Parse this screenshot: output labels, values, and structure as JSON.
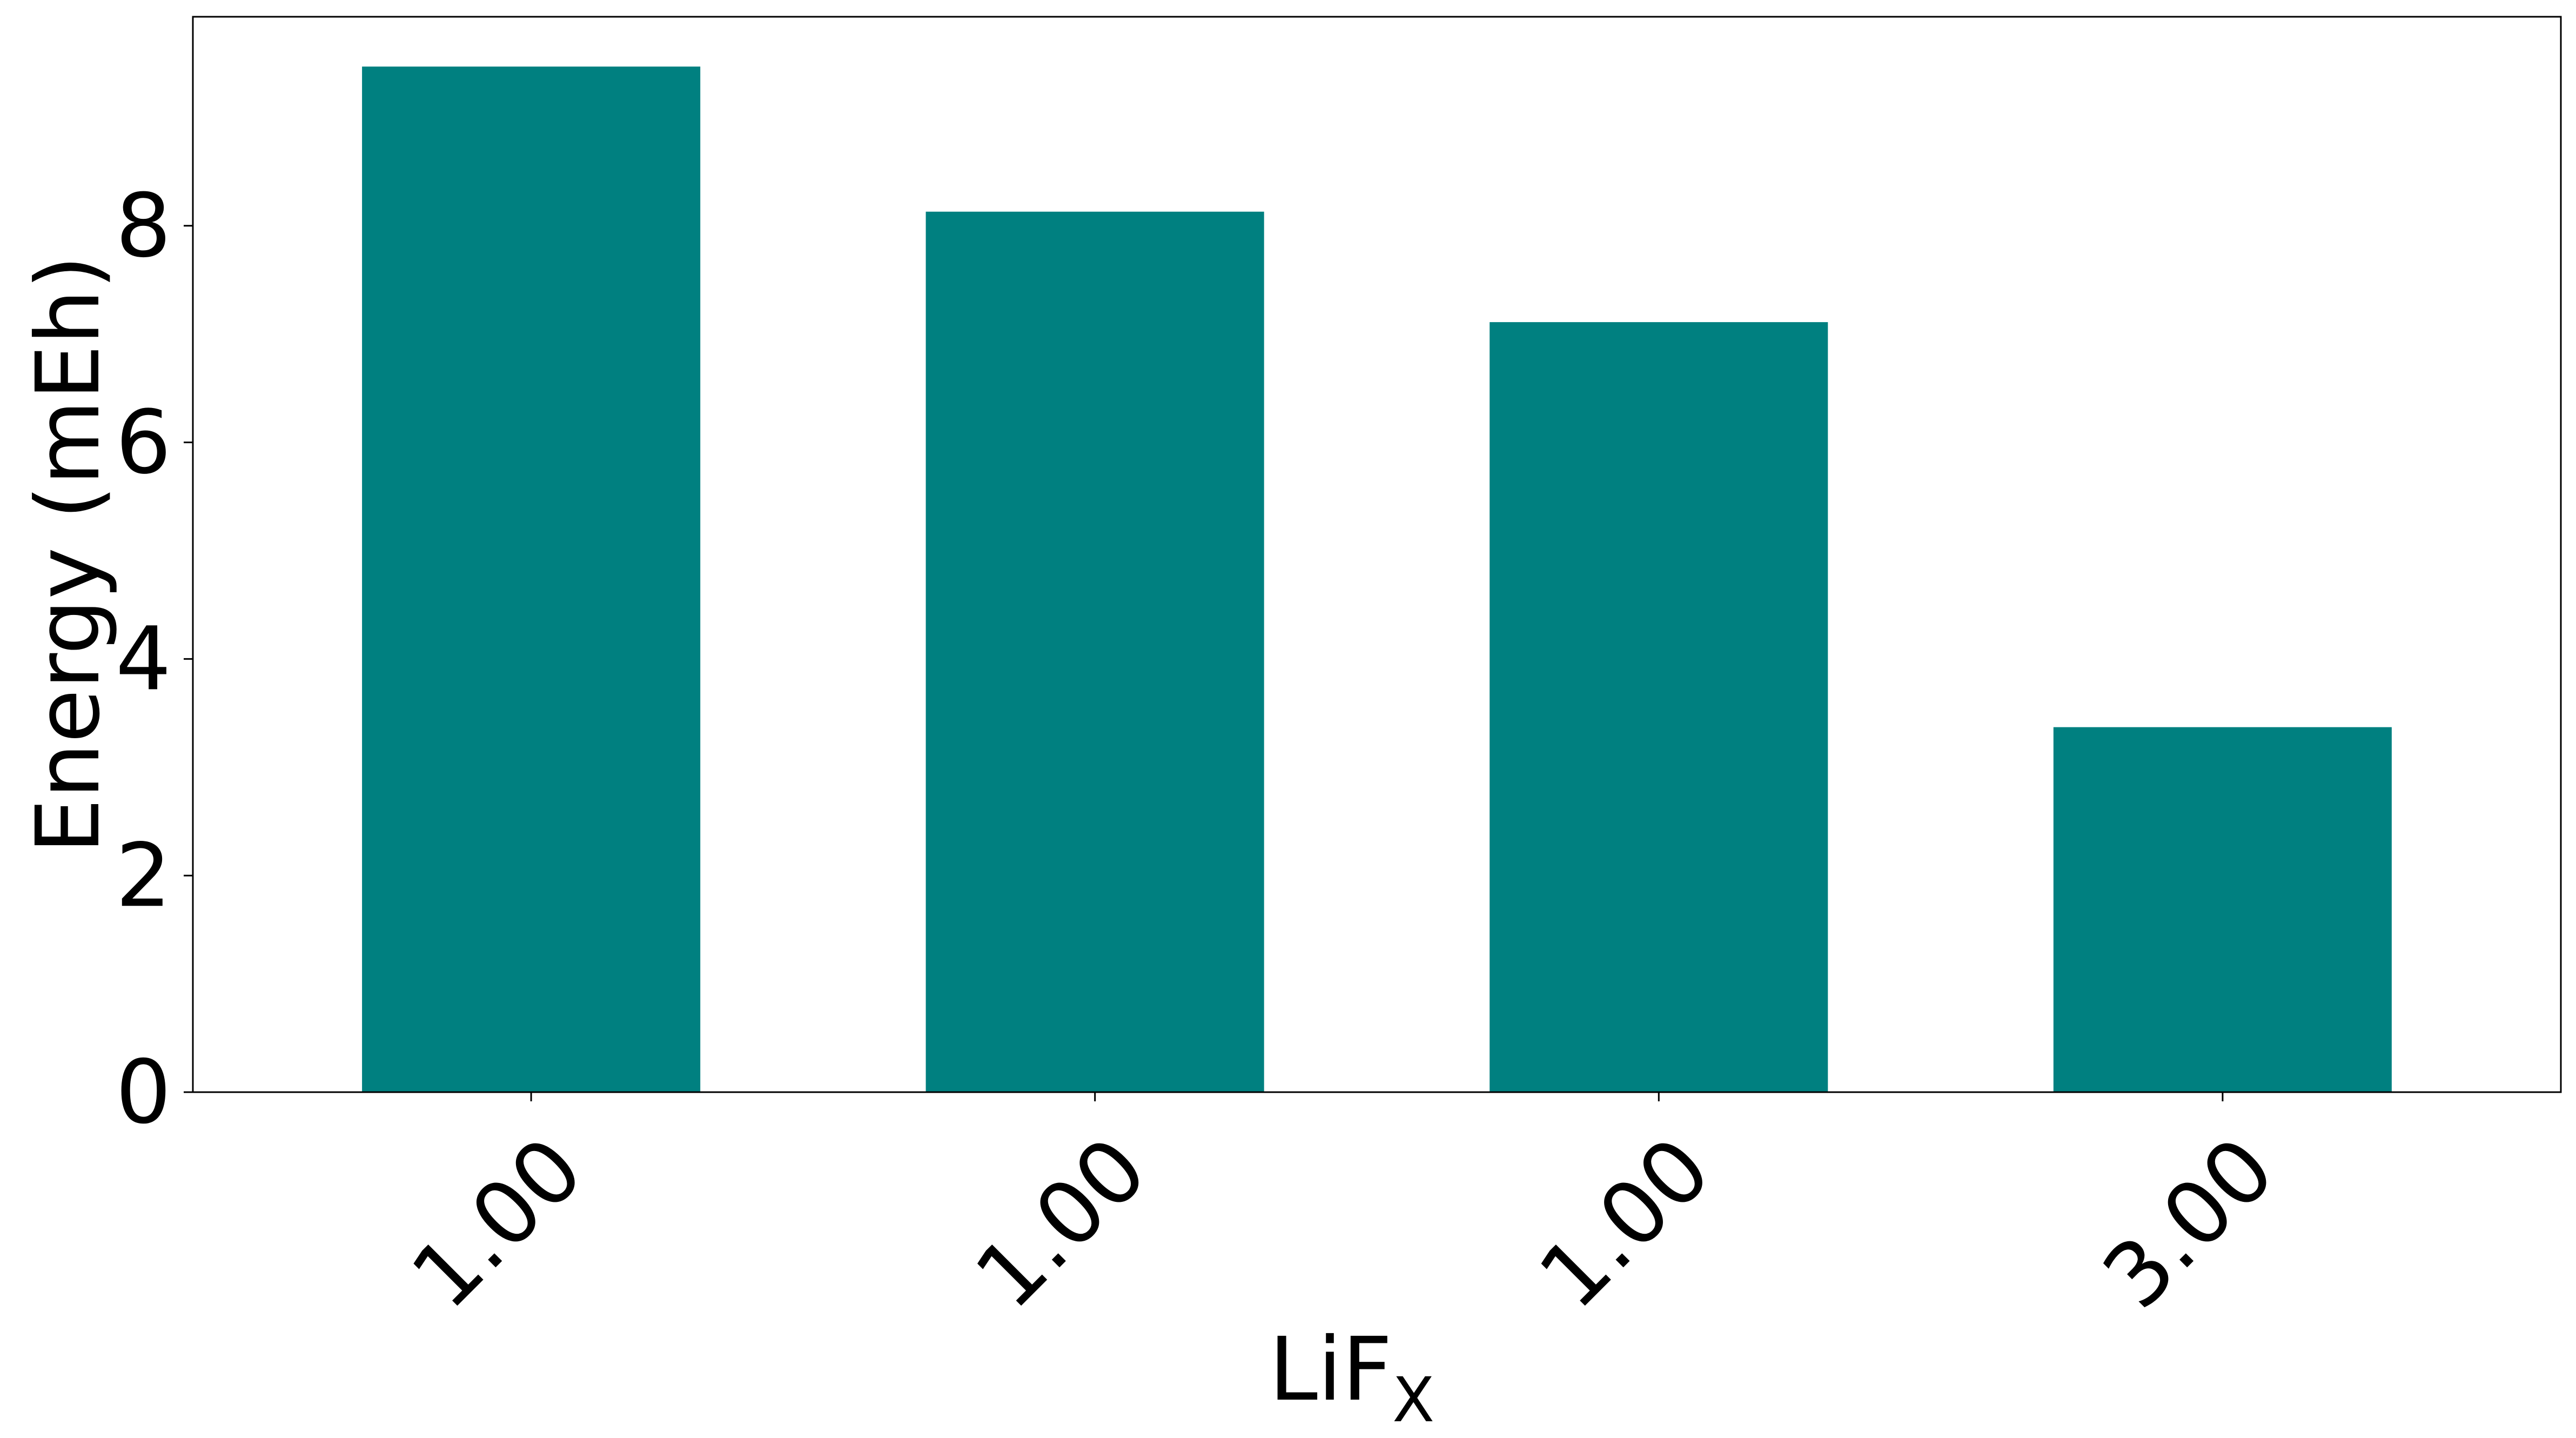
{
  "chart_data": {
    "type": "bar",
    "categories": [
      "1.00",
      "1.00",
      "1.00",
      "3.00"
    ],
    "values": [
      9.47,
      8.13,
      7.11,
      3.37
    ],
    "title": "",
    "xlabel": "LiF",
    "xlabel_subscript": "X",
    "ylabel": "Energy (mEh)",
    "ylim": [
      0,
      9.93
    ],
    "yticks": [
      0,
      2,
      4,
      6,
      8
    ],
    "bar_color": "#008080",
    "grid": false,
    "legend": "none"
  }
}
